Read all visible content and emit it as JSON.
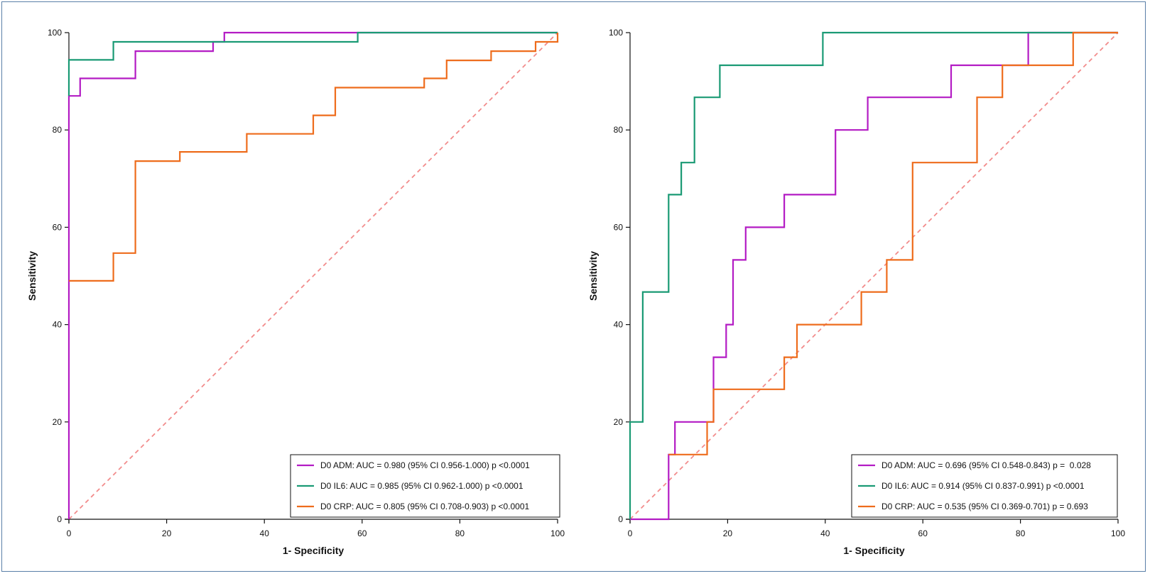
{
  "chart_data": [
    {
      "type": "line",
      "subtype": "roc",
      "xlabel": "1- Specificity",
      "ylabel": "Sensitivity",
      "xlim": [
        0,
        100
      ],
      "ylim": [
        0,
        100
      ],
      "xticks": [
        "0",
        "20",
        "40",
        "60",
        "80",
        "100"
      ],
      "yticks": [
        "0",
        "20",
        "40",
        "60",
        "80",
        "100"
      ],
      "legend_position": "bottom-right",
      "reference_line": {
        "from": [
          0,
          0
        ],
        "to": [
          100,
          100
        ],
        "color": "#f28c8c",
        "style": "dashed"
      },
      "series": [
        {
          "name": "D0 ADM",
          "legend": "D0 ADM: AUC = 0.980 (95% CI 0.956-1.000) p <0.0001",
          "color": "#b31bc4",
          "points": [
            [
              0,
              0
            ],
            [
              0,
              87
            ],
            [
              2.3,
              87
            ],
            [
              2.3,
              90.6
            ],
            [
              13.6,
              90.6
            ],
            [
              13.6,
              96.2
            ],
            [
              29.5,
              96.2
            ],
            [
              29.5,
              98.1
            ],
            [
              31.8,
              98.1
            ],
            [
              31.8,
              100
            ],
            [
              100,
              100
            ]
          ]
        },
        {
          "name": "D0 IL6",
          "legend": "D0 IL6: AUC = 0.985 (95% CI 0.962-1.000) p <0.0001",
          "color": "#1a9a74",
          "points": [
            [
              0,
              87
            ],
            [
              0,
              94.4
            ],
            [
              9.1,
              94.4
            ],
            [
              9.1,
              98.1
            ],
            [
              59.1,
              98.1
            ],
            [
              59.1,
              100
            ],
            [
              100,
              100
            ]
          ]
        },
        {
          "name": "D0 CRP",
          "legend": "D0 CRP: AUC = 0.805 (95% CI 0.708-0.903) p <0.0001",
          "color": "#ee6c1c",
          "points": [
            [
              0,
              49
            ],
            [
              9.1,
              49
            ],
            [
              9.1,
              54.7
            ],
            [
              13.6,
              54.7
            ],
            [
              13.6,
              73.6
            ],
            [
              22.7,
              73.6
            ],
            [
              22.7,
              75.5
            ],
            [
              36.4,
              75.5
            ],
            [
              36.4,
              79.2
            ],
            [
              50,
              79.2
            ],
            [
              50,
              83
            ],
            [
              54.5,
              83
            ],
            [
              54.5,
              88.7
            ],
            [
              72.7,
              88.7
            ],
            [
              72.7,
              90.6
            ],
            [
              77.3,
              90.6
            ],
            [
              77.3,
              94.3
            ],
            [
              86.4,
              94.3
            ],
            [
              86.4,
              96.2
            ],
            [
              95.5,
              96.2
            ],
            [
              95.5,
              98.1
            ],
            [
              100,
              98.1
            ],
            [
              100,
              100
            ]
          ]
        }
      ]
    },
    {
      "type": "line",
      "subtype": "roc",
      "xlabel": "1- Specificity",
      "ylabel": "Sensitivity",
      "xlim": [
        0,
        100
      ],
      "ylim": [
        0,
        100
      ],
      "xticks": [
        "0",
        "20",
        "40",
        "60",
        "80",
        "100"
      ],
      "yticks": [
        "0",
        "20",
        "40",
        "60",
        "80",
        "100"
      ],
      "legend_position": "bottom-right",
      "reference_line": {
        "from": [
          0,
          0
        ],
        "to": [
          100,
          100
        ],
        "color": "#f28c8c",
        "style": "dashed"
      },
      "series": [
        {
          "name": "D0 ADM",
          "legend": "D0 ADM: AUC = 0.696 (95% CI 0.548-0.843) p =  0.028",
          "color": "#b31bc4",
          "points": [
            [
              0,
              0
            ],
            [
              7.9,
              0
            ],
            [
              7.9,
              13.3
            ],
            [
              9.2,
              13.3
            ],
            [
              9.2,
              20
            ],
            [
              17.1,
              20
            ],
            [
              17.1,
              33.3
            ],
            [
              19.7,
              33.3
            ],
            [
              19.7,
              40
            ],
            [
              21.1,
              40
            ],
            [
              21.1,
              53.3
            ],
            [
              23.7,
              53.3
            ],
            [
              23.7,
              60
            ],
            [
              31.6,
              60
            ],
            [
              31.6,
              66.7
            ],
            [
              42.1,
              66.7
            ],
            [
              42.1,
              80
            ],
            [
              48.7,
              80
            ],
            [
              48.7,
              86.7
            ],
            [
              65.8,
              86.7
            ],
            [
              65.8,
              93.3
            ],
            [
              81.6,
              93.3
            ],
            [
              81.6,
              100
            ],
            [
              100,
              100
            ]
          ]
        },
        {
          "name": "D0 IL6",
          "legend": "D0 IL6: AUC = 0.914 (95% CI 0.837-0.991) p <0.0001",
          "color": "#1a9a74",
          "points": [
            [
              0,
              0
            ],
            [
              0,
              20
            ],
            [
              2.6,
              20
            ],
            [
              2.6,
              46.7
            ],
            [
              7.9,
              46.7
            ],
            [
              7.9,
              66.7
            ],
            [
              10.5,
              66.7
            ],
            [
              10.5,
              73.3
            ],
            [
              13.2,
              73.3
            ],
            [
              13.2,
              86.7
            ],
            [
              18.4,
              86.7
            ],
            [
              18.4,
              93.3
            ],
            [
              39.5,
              93.3
            ],
            [
              39.5,
              100
            ],
            [
              100,
              100
            ]
          ]
        },
        {
          "name": "D0 CRP",
          "legend": "D0 CRP: AUC = 0.535 (95% CI 0.369-0.701) p = 0.693",
          "color": "#ee6c1c",
          "points": [
            [
              7.9,
              13.3
            ],
            [
              15.8,
              13.3
            ],
            [
              15.8,
              20
            ],
            [
              17.1,
              20
            ],
            [
              17.1,
              26.7
            ],
            [
              31.6,
              26.7
            ],
            [
              31.6,
              33.3
            ],
            [
              34.2,
              33.3
            ],
            [
              34.2,
              40
            ],
            [
              47.4,
              40
            ],
            [
              47.4,
              46.7
            ],
            [
              52.6,
              46.7
            ],
            [
              52.6,
              53.3
            ],
            [
              57.9,
              53.3
            ],
            [
              57.9,
              73.3
            ],
            [
              71.1,
              73.3
            ],
            [
              71.1,
              86.7
            ],
            [
              76.3,
              86.7
            ],
            [
              76.3,
              93.3
            ],
            [
              90.8,
              93.3
            ],
            [
              90.8,
              100
            ],
            [
              100,
              100
            ]
          ]
        }
      ]
    }
  ]
}
